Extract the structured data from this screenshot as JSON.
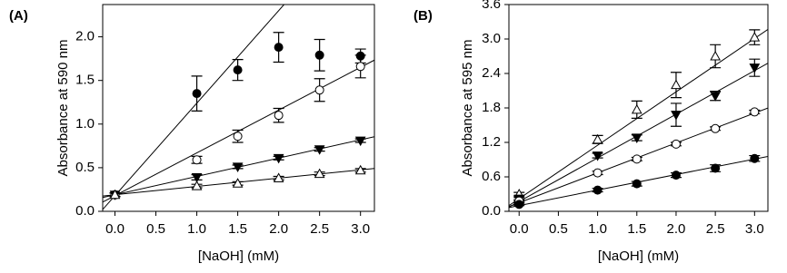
{
  "chart_data": [
    {
      "type": "scatter",
      "panel_label": "(A)",
      "x_label": "[NaOH] (mM)",
      "y_label": "Absorbance at 590 nm",
      "xlim": [
        -0.15,
        3.17
      ],
      "ylim": [
        0,
        2.37
      ],
      "xticks": [
        {
          "value": 0,
          "label": "0.0"
        },
        0.5,
        {
          "value": 1,
          "label": "1.0"
        },
        1.5,
        {
          "value": 2,
          "label": "2.0"
        },
        2.5,
        {
          "value": 3,
          "label": "3.0"
        }
      ],
      "yticks": [
        {
          "value": 0,
          "label": "0.0"
        },
        0.5,
        {
          "value": 1,
          "label": "1.0"
        },
        1.5,
        {
          "value": 2,
          "label": "2.0"
        }
      ],
      "x": [
        0,
        1,
        1.5,
        2,
        2.5,
        3
      ],
      "series": [
        {
          "marker": "circle-filled",
          "color": "#000000",
          "values": [
            0.19,
            1.35,
            1.62,
            1.88,
            1.79,
            1.78
          ],
          "errors": [
            0.02,
            0.2,
            0.12,
            0.17,
            0.18,
            0.08
          ],
          "fit": {
            "slope": 1.06,
            "intercept": 0.18
          }
        },
        {
          "marker": "circle-open",
          "color": "#000000",
          "values": [
            0.19,
            0.59,
            0.86,
            1.1,
            1.39,
            1.66
          ],
          "errors": [
            0.02,
            0.04,
            0.07,
            0.08,
            0.13,
            0.13
          ],
          "fit": {
            "slope": 0.49,
            "intercept": 0.18
          }
        },
        {
          "marker": "triangle-down-filled",
          "color": "#000000",
          "values": [
            0.19,
            0.39,
            0.51,
            0.61,
            0.71,
            0.81
          ],
          "errors": [
            0.02,
            0.03,
            0.02,
            0.02,
            0.02,
            0.02
          ],
          "fit": {
            "slope": 0.21,
            "intercept": 0.19
          }
        },
        {
          "marker": "triangle-up-open",
          "color": "#000000",
          "values": [
            0.19,
            0.29,
            0.32,
            0.38,
            0.43,
            0.47
          ],
          "errors": [
            0.02,
            0.02,
            0.02,
            0.02,
            0.02,
            0.02
          ],
          "fit": {
            "slope": 0.095,
            "intercept": 0.19
          }
        }
      ]
    },
    {
      "type": "scatter",
      "panel_label": "(B)",
      "x_label": "[NaOH] (mM)",
      "y_label": "Absorbance at 595 nm",
      "xlim": [
        -0.13,
        3.17
      ],
      "ylim": [
        0,
        3.6
      ],
      "xticks": [
        {
          "value": 0,
          "label": "0.0"
        },
        0.5,
        {
          "value": 1,
          "label": "1.0"
        },
        1.5,
        {
          "value": 2,
          "label": "2.0"
        },
        2.5,
        {
          "value": 3,
          "label": "3.0"
        }
      ],
      "yticks": [
        {
          "value": 0,
          "label": "0.0"
        },
        0.6,
        1.2,
        1.8,
        2.4,
        {
          "value": 3,
          "label": "3.0"
        },
        3.6
      ],
      "x": [
        0,
        1,
        1.5,
        2,
        2.5,
        3
      ],
      "series": [
        {
          "marker": "triangle-up-open",
          "color": "#000000",
          "values": [
            0.3,
            1.25,
            1.77,
            2.2,
            2.7,
            3.03
          ],
          "errors": [
            0.03,
            0.07,
            0.15,
            0.22,
            0.2,
            0.13
          ],
          "fit": {
            "slope": 0.93,
            "intercept": 0.22
          }
        },
        {
          "marker": "triangle-down-filled",
          "color": "#000000",
          "values": [
            0.22,
            0.97,
            1.28,
            1.68,
            2.01,
            2.5
          ],
          "errors": [
            0.03,
            0.04,
            0.05,
            0.2,
            0.08,
            0.15
          ],
          "fit": {
            "slope": 0.76,
            "intercept": 0.17
          }
        },
        {
          "marker": "circle-open",
          "color": "#000000",
          "values": [
            0.18,
            0.67,
            0.91,
            1.17,
            1.44,
            1.73
          ],
          "errors": [
            0.02,
            0.03,
            0.03,
            0.03,
            0.03,
            0.03
          ],
          "fit": {
            "slope": 0.52,
            "intercept": 0.15
          }
        },
        {
          "marker": "circle-filled",
          "color": "#000000",
          "values": [
            0.12,
            0.37,
            0.48,
            0.63,
            0.75,
            0.92
          ],
          "errors": [
            0.02,
            0.03,
            0.04,
            0.04,
            0.06,
            0.05
          ],
          "fit": {
            "slope": 0.27,
            "intercept": 0.1
          }
        }
      ]
    }
  ]
}
